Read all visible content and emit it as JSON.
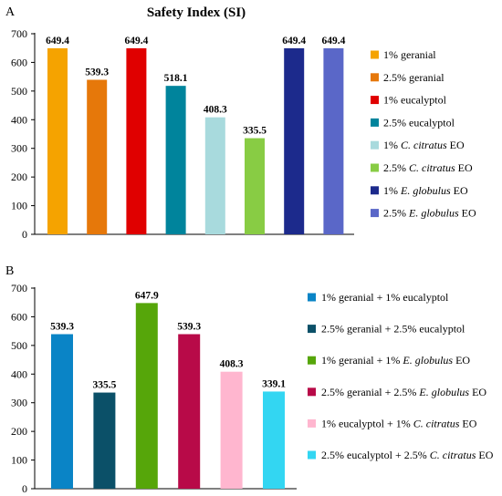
{
  "chart_data": [
    {
      "panel_label": "A",
      "type": "bar",
      "title": "Safety Index (SI)",
      "ylim": [
        0,
        700
      ],
      "yticks": [
        0,
        100,
        200,
        300,
        400,
        500,
        600,
        700
      ],
      "grid": false,
      "legend_position": "right",
      "series": [
        {
          "name": "1% geranial",
          "name_parts": [
            {
              "t": "1% geranial",
              "i": false
            }
          ],
          "value": 649.4,
          "value_label": "649.4",
          "color": "#F5A300"
        },
        {
          "name": "2.5% geranial",
          "name_parts": [
            {
              "t": "2.5% geranial",
              "i": false
            }
          ],
          "value": 539.3,
          "value_label": "539.3",
          "color": "#E6780A"
        },
        {
          "name": "1% eucalyptol",
          "name_parts": [
            {
              "t": "1% eucalyptol",
              "i": false
            }
          ],
          "value": 649.4,
          "value_label": "649.4",
          "color": "#E00000"
        },
        {
          "name": "2.5% eucalyptol",
          "name_parts": [
            {
              "t": "2.5% eucalyptol",
              "i": false
            }
          ],
          "value": 518.1,
          "value_label": "518.1",
          "color": "#00849C"
        },
        {
          "name": "1% C. citratus EO",
          "name_parts": [
            {
              "t": "1% ",
              "i": false
            },
            {
              "t": "C. citratus",
              "i": true
            },
            {
              "t": " EO",
              "i": false
            }
          ],
          "value": 408.3,
          "value_label": "408.3",
          "color": "#A8DADD"
        },
        {
          "name": "2.5% C. citratus EO",
          "name_parts": [
            {
              "t": "2.5% ",
              "i": false
            },
            {
              "t": "C. citratus",
              "i": true
            },
            {
              "t": " EO",
              "i": false
            }
          ],
          "value": 335.5,
          "value_label": "335.5",
          "color": "#88CC44"
        },
        {
          "name": "1% E. globulus EO",
          "name_parts": [
            {
              "t": "1% ",
              "i": false
            },
            {
              "t": "E. globulus",
              "i": true
            },
            {
              "t": " EO",
              "i": false
            }
          ],
          "value": 649.4,
          "value_label": "649.4",
          "color": "#1C2A8C"
        },
        {
          "name": "2.5% E. globulus EO",
          "name_parts": [
            {
              "t": "2.5% ",
              "i": false
            },
            {
              "t": "E. globulus",
              "i": true
            },
            {
              "t": " EO",
              "i": false
            }
          ],
          "value": 649.4,
          "value_label": "649.4",
          "color": "#5A67C8"
        }
      ]
    },
    {
      "panel_label": "B",
      "type": "bar",
      "title": "",
      "ylim": [
        0,
        700
      ],
      "yticks": [
        0,
        100,
        200,
        300,
        400,
        500,
        600,
        700
      ],
      "grid": false,
      "legend_position": "right",
      "series": [
        {
          "name": "1% geranial + 1% eucalyptol",
          "name_parts": [
            {
              "t": "1% geranial + 1% eucalyptol",
              "i": false
            }
          ],
          "value": 539.3,
          "value_label": "539.3",
          "color": "#0A84C6"
        },
        {
          "name": "2.5% geranial + 2.5% eucalyptol",
          "name_parts": [
            {
              "t": "2.5% geranial + 2.5% eucalyptol",
              "i": false
            }
          ],
          "value": 335.5,
          "value_label": "335.5",
          "color": "#0B5068"
        },
        {
          "name": "1% geranial + 1% E. globulus EO",
          "name_parts": [
            {
              "t": "1% geranial + 1% ",
              "i": false
            },
            {
              "t": "E. globulus",
              "i": true
            },
            {
              "t": " EO",
              "i": false
            }
          ],
          "value": 647.9,
          "value_label": "647.9",
          "color": "#56A60A"
        },
        {
          "name": "2.5% geranial + 2.5% E. globulus EO",
          "name_parts": [
            {
              "t": "2.5% geranial + 2.5% ",
              "i": false
            },
            {
              "t": "E. globulus",
              "i": true
            },
            {
              "t": " EO",
              "i": false
            }
          ],
          "value": 539.3,
          "value_label": "539.3",
          "color": "#B80A48"
        },
        {
          "name": "1% eucalyptol + 1% C. citratus EO",
          "name_parts": [
            {
              "t": "1% eucalyptol + 1% ",
              "i": false
            },
            {
              "t": "C. citratus",
              "i": true
            },
            {
              "t": " EO",
              "i": false
            }
          ],
          "value": 408.3,
          "value_label": "408.3",
          "color": "#FFB6CF"
        },
        {
          "name": "2.5% eucalyptol + 2.5% C. citratus EO",
          "name_parts": [
            {
              "t": "2.5% eucalyptol + 2.5% ",
              "i": false
            },
            {
              "t": "C. citratus",
              "i": true
            },
            {
              "t": " EO",
              "i": false
            }
          ],
          "value": 339.1,
          "value_label": "339.1",
          "color": "#33D6F2"
        }
      ]
    }
  ]
}
